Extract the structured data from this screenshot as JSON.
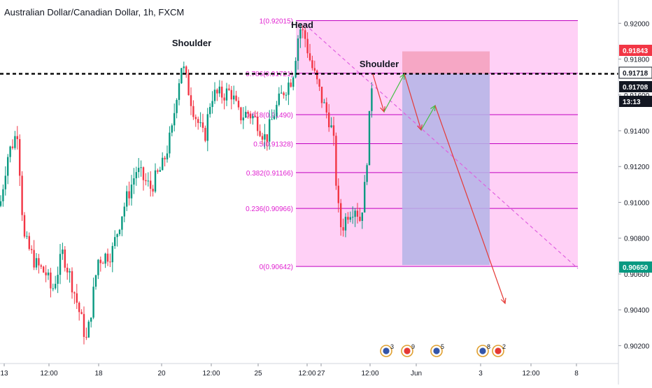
{
  "header": {
    "title": "Australian Dollar/Canadian Dollar, 1h, FXCM"
  },
  "chart_data": {
    "type": "candlestick",
    "symbol": "AUDCAD",
    "timeframe": "1h",
    "ylim": [
      0.901,
      0.9213
    ],
    "y_ticks": [
      "0.92000",
      "0.91800",
      "0.91600",
      "0.91400",
      "0.91200",
      "0.91000",
      "0.90800",
      "0.90600",
      "0.90400",
      "0.90200"
    ],
    "x_ticks": [
      "13",
      "12:00",
      "18",
      "12:00",
      "20",
      "12:00",
      "25",
      "12:00",
      "27",
      "12:00",
      "Jun",
      "3",
      "12:00",
      "8"
    ],
    "fib_levels": [
      {
        "label": "1(0.92015)",
        "value": 0.92015
      },
      {
        "label": "0.786(0.91721)",
        "value": 0.91721
      },
      {
        "label": "0.618(0.91490)",
        "value": 0.9149
      },
      {
        "label": "0.5(0.91328)",
        "value": 0.91328
      },
      {
        "label": "0.382(0.91166)",
        "value": 0.91166
      },
      {
        "label": "0.236(0.90966)",
        "value": 0.90966
      },
      {
        "label": "0(0.90642)",
        "value": 0.90642
      }
    ],
    "neckline": 0.91718,
    "annotations": [
      "Shoulder",
      "Head",
      "Shoulder"
    ],
    "price_labels": [
      {
        "text": "0.91843",
        "value": 0.91843,
        "color": "#f23645",
        "text_color": "#ffffff"
      },
      {
        "text": "0.91718",
        "value": 0.91718,
        "color": "#ffffff",
        "text_color": "#131722",
        "bordered": true
      },
      {
        "text": "0.91708",
        "value": 0.91708,
        "color": "#131722",
        "text_color": "#ffffff"
      },
      {
        "text": "13:13",
        "value": 0.91652,
        "color": "#131722",
        "text_color": "#ffffff"
      },
      {
        "text": "0.90650",
        "value": 0.9065,
        "color": "#089981",
        "text_color": "#ffffff"
      }
    ],
    "event_markers": [
      "3",
      "9",
      "5",
      "8",
      "2"
    ],
    "colors": {
      "up": "#089981",
      "down": "#f23645",
      "fib_fill": "#ffc8f5",
      "fib_line": "#c000c0",
      "fib_text": "#e020d0",
      "target_zone": "#b4b4e6",
      "stop_zone": "#f5a0bc",
      "trend_line": "#e060e0",
      "projection": "#e53935",
      "bounce": "#43c043"
    }
  }
}
